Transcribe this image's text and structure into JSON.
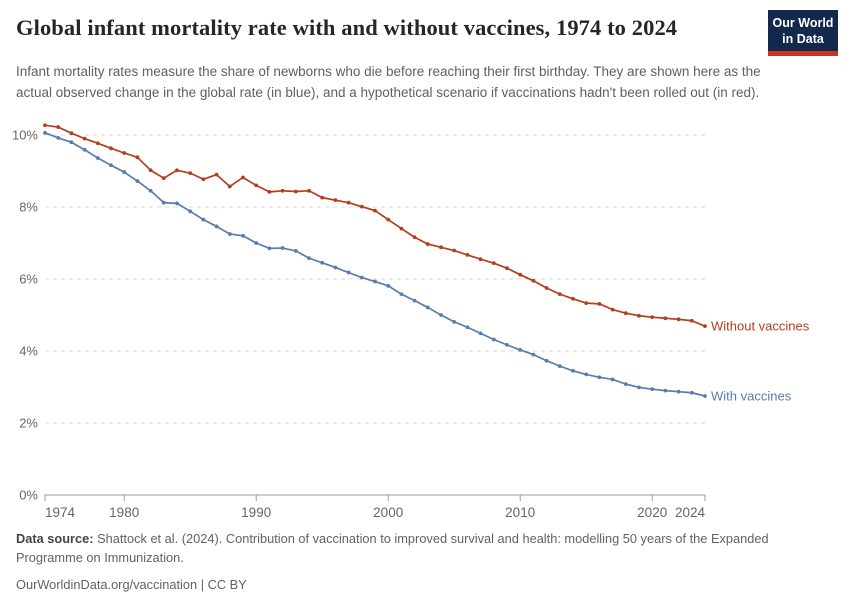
{
  "header": {
    "title": "Global infant mortality rate with and without vaccines, 1974 to 2024",
    "subtitle": "Infant mortality rates measure the share of newborns who die before reaching their first birthday. They are shown here as the actual observed change in the global rate (in blue), and a hypothetical scenario if vaccinations hadn't been rolled out (in red).",
    "logo": {
      "line1": "Our World",
      "line2": "in Data",
      "bg": "#12284c",
      "accent": "#c9331f"
    }
  },
  "chart_data": {
    "type": "line",
    "title": "Global infant mortality rate with and without vaccines, 1974 to 2024",
    "xlabel": "",
    "ylabel": "",
    "ylim": [
      0,
      10.5
    ],
    "yticks": [
      0,
      2,
      4,
      6,
      8,
      10
    ],
    "ytick_format": "percent",
    "xticks": [
      1974,
      1980,
      1990,
      2000,
      2010,
      2020,
      2024
    ],
    "grid": "horizontal-dashed",
    "legend_position": "end-of-line-labels",
    "x": [
      1974,
      1975,
      1976,
      1977,
      1978,
      1979,
      1980,
      1981,
      1982,
      1983,
      1984,
      1985,
      1986,
      1987,
      1988,
      1989,
      1990,
      1991,
      1992,
      1993,
      1994,
      1995,
      1996,
      1997,
      1998,
      1999,
      2000,
      2001,
      2002,
      2003,
      2004,
      2005,
      2006,
      2007,
      2008,
      2009,
      2010,
      2011,
      2012,
      2013,
      2014,
      2015,
      2016,
      2017,
      2018,
      2019,
      2020,
      2021,
      2022,
      2023,
      2024
    ],
    "series": [
      {
        "name": "Without vaccines",
        "color": "#b23e1c",
        "values": [
          10.27,
          10.22,
          10.05,
          9.9,
          9.77,
          9.63,
          9.5,
          9.38,
          9.02,
          8.8,
          9.02,
          8.94,
          8.77,
          8.9,
          8.57,
          8.82,
          8.6,
          8.42,
          8.45,
          8.43,
          8.45,
          8.26,
          8.19,
          8.12,
          8.01,
          7.9,
          7.65,
          7.4,
          7.16,
          6.97,
          6.88,
          6.79,
          6.67,
          6.55,
          6.44,
          6.3,
          6.12,
          5.95,
          5.75,
          5.58,
          5.45,
          5.33,
          5.31,
          5.15,
          5.05,
          4.98,
          4.94,
          4.91,
          4.88,
          4.84,
          4.69
        ]
      },
      {
        "name": "With vaccines",
        "color": "#587cad",
        "values": [
          10.06,
          9.92,
          9.8,
          9.59,
          9.36,
          9.16,
          8.97,
          8.72,
          8.45,
          8.12,
          8.1,
          7.88,
          7.65,
          7.46,
          7.25,
          7.2,
          7.0,
          6.85,
          6.86,
          6.78,
          6.58,
          6.45,
          6.32,
          6.18,
          6.04,
          5.93,
          5.81,
          5.58,
          5.4,
          5.21,
          5.0,
          4.81,
          4.66,
          4.49,
          4.32,
          4.17,
          4.03,
          3.9,
          3.73,
          3.58,
          3.45,
          3.35,
          3.27,
          3.21,
          3.08,
          2.99,
          2.94,
          2.9,
          2.87,
          2.84,
          2.75
        ]
      }
    ],
    "style": {
      "grid_color": "#d9d9d9",
      "axis_color": "#9a9a9a",
      "tick_label_color": "#666666"
    }
  },
  "footer": {
    "datasource_label": "Data source:",
    "datasource_text": "Shattock et al. (2024). Contribution of vaccination to improved survival and health: modelling 50 years of the Expanded Programme on Immunization.",
    "license_line": "OurWorldinData.org/vaccination | CC BY"
  }
}
